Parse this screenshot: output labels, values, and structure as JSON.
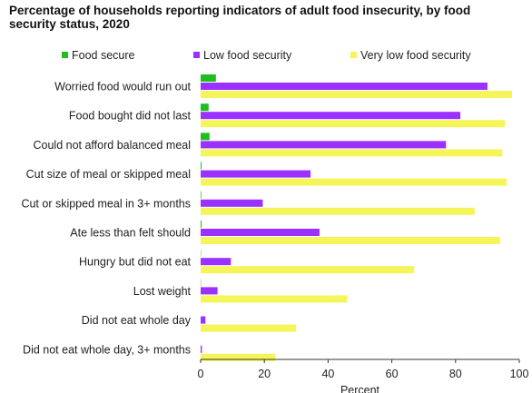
{
  "chart_data": {
    "type": "bar",
    "orientation": "horizontal",
    "title": "Percentage of households reporting indicators of adult food insecurity, by food security status, 2020",
    "xlabel": "Percent",
    "ylabel": "",
    "xlim": [
      0,
      100
    ],
    "xticks": [
      0,
      20,
      40,
      60,
      80,
      100
    ],
    "grid": false,
    "legend_position": "top",
    "categories": [
      "Worried food would run out",
      "Food bought did not last",
      "Could not afford balanced meal",
      "Cut size of meal or skipped meal",
      "Cut or skipped meal in 3+ months",
      "Ate less than felt should",
      "Hungry but did not eat",
      "Lost weight",
      "Did not eat whole day",
      "Did not eat whole day, 3+ months"
    ],
    "series": [
      {
        "name": "Food secure",
        "color": "#1dbf1d",
        "values": [
          4.8,
          2.5,
          2.8,
          0.3,
          0.2,
          0.3,
          0.1,
          0.1,
          0.0,
          0.0
        ]
      },
      {
        "name": "Low food security",
        "color": "#9b30ff",
        "values": [
          90.0,
          81.5,
          77.0,
          34.5,
          19.5,
          37.3,
          9.5,
          5.3,
          1.5,
          0.4
        ]
      },
      {
        "name": "Very low food security",
        "color": "#f5f55a",
        "values": [
          97.7,
          95.5,
          94.7,
          96.0,
          86.0,
          94.0,
          67.0,
          46.0,
          30.0,
          23.5
        ]
      }
    ]
  }
}
